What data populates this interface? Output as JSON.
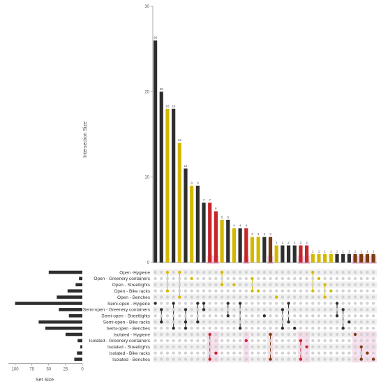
{
  "chart_data": {
    "type": "bar",
    "subtype": "upset",
    "y_label": "Intersection Size",
    "x_label_sets": "Set Size",
    "y_ticks": [
      0,
      10,
      20,
      30
    ],
    "set_size_ticks": [
      100,
      75,
      50,
      25,
      0
    ],
    "ylim": [
      0,
      30
    ],
    "set_size_lim": [
      0,
      110
    ],
    "colors": {
      "bar_dark": "#2e2e2e",
      "gold": "#d4b800",
      "red": "#c6262a",
      "brown": "#7a3c10",
      "highlight": "#f5cfe6",
      "stripe": "#f0f0f0",
      "dot_empty": "#d2d2d2",
      "axis": "#888888"
    },
    "sets": [
      {
        "name": "Open -Hygiene",
        "size": 50,
        "group": "open"
      },
      {
        "name": "Open - Greenery containers",
        "size": 5,
        "group": "open"
      },
      {
        "name": "Open - Streetlights",
        "size": 10,
        "group": "open"
      },
      {
        "name": "Open - Bike racks",
        "size": 22,
        "group": "open"
      },
      {
        "name": "Open - Benches",
        "size": 38,
        "group": "open"
      },
      {
        "name": "Semi-open - Hygiene",
        "size": 100,
        "group": "semi"
      },
      {
        "name": "Semi-open - Greenery containers",
        "size": 35,
        "group": "semi"
      },
      {
        "name": "Semi-open - Streetlights",
        "size": 20,
        "group": "semi"
      },
      {
        "name": "Semi-open - Bike racks",
        "size": 65,
        "group": "semi"
      },
      {
        "name": "Semi-open - Benches",
        "size": 55,
        "group": "semi"
      },
      {
        "name": "Isolated - Hygiene",
        "size": 25,
        "group": "iso"
      },
      {
        "name": "Isolated - Greenery containers",
        "size": 7,
        "group": "iso"
      },
      {
        "name": "Isolated - Streetlights",
        "size": 3,
        "group": "iso"
      },
      {
        "name": "Isolated - Bike racks",
        "size": 8,
        "group": "iso"
      },
      {
        "name": "Isolated - Benches",
        "size": 12,
        "group": "iso"
      }
    ],
    "intersections": [
      {
        "value": 26,
        "color": "dark",
        "sets": [
          5
        ]
      },
      {
        "value": 20,
        "color": "dark",
        "sets": [
          6,
          8
        ]
      },
      {
        "value": 18,
        "color": "gold",
        "sets": [
          0,
          3
        ]
      },
      {
        "value": 18,
        "color": "dark",
        "sets": [
          5,
          9
        ]
      },
      {
        "value": 14,
        "color": "gold",
        "sets": [
          0,
          4
        ]
      },
      {
        "value": 11,
        "color": "dark",
        "sets": [
          6,
          8,
          9
        ]
      },
      {
        "value": 9,
        "color": "gold",
        "sets": [
          1
        ]
      },
      {
        "value": 9,
        "color": "dark",
        "sets": [
          5,
          8
        ]
      },
      {
        "value": 7,
        "color": "dark",
        "sets": [
          5,
          6
        ]
      },
      {
        "value": 7,
        "color": "red",
        "sets": [
          10,
          14
        ]
      },
      {
        "value": 6,
        "color": "red",
        "sets": [
          13
        ]
      },
      {
        "value": 5,
        "color": "gold",
        "sets": [
          0,
          2
        ]
      },
      {
        "value": 5,
        "color": "dark",
        "sets": [
          5,
          7
        ]
      },
      {
        "value": 4,
        "color": "gold",
        "sets": [
          2
        ]
      },
      {
        "value": 4,
        "color": "dark",
        "sets": [
          5,
          9
        ]
      },
      {
        "value": 4,
        "color": "red",
        "sets": [
          11
        ]
      },
      {
        "value": 3,
        "color": "gold",
        "sets": [
          1,
          3
        ]
      },
      {
        "value": 3,
        "color": "gold",
        "sets": [
          3
        ]
      },
      {
        "value": 3,
        "color": "dark",
        "sets": [
          7
        ]
      },
      {
        "value": 3,
        "color": "brown",
        "sets": [
          10,
          14
        ]
      },
      {
        "value": 2,
        "color": "gold",
        "sets": [
          4
        ]
      },
      {
        "value": 2,
        "color": "dark",
        "sets": [
          6,
          9
        ]
      },
      {
        "value": 2,
        "color": "dark",
        "sets": [
          5,
          8
        ]
      },
      {
        "value": 2,
        "color": "dark",
        "sets": [
          9
        ]
      },
      {
        "value": 2,
        "color": "red",
        "sets": [
          11,
          14
        ]
      },
      {
        "value": 2,
        "color": "red",
        "sets": [
          12
        ]
      },
      {
        "value": 1,
        "color": "gold",
        "sets": [
          0,
          3
        ]
      },
      {
        "value": 1,
        "color": "gold",
        "sets": [
          1
        ]
      },
      {
        "value": 1,
        "color": "gold",
        "sets": [
          2,
          4
        ]
      },
      {
        "value": 1,
        "color": "gold",
        "sets": [
          3
        ]
      },
      {
        "value": 1,
        "color": "dark",
        "sets": [
          5,
          7
        ]
      },
      {
        "value": 1,
        "color": "dark",
        "sets": [
          6,
          9
        ]
      },
      {
        "value": 1,
        "color": "dark",
        "sets": [
          8
        ]
      },
      {
        "value": 1,
        "color": "brown",
        "sets": [
          10
        ]
      },
      {
        "value": 1,
        "color": "brown",
        "sets": [
          12,
          14
        ]
      },
      {
        "value": 1,
        "color": "brown",
        "sets": [
          13
        ]
      },
      {
        "value": 1,
        "color": "brown",
        "sets": [
          14
        ]
      }
    ]
  }
}
